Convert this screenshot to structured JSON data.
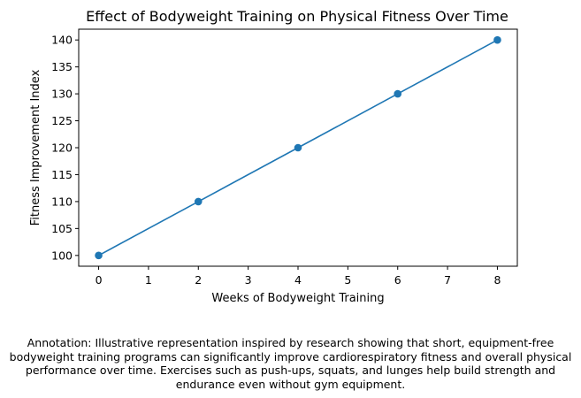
{
  "chart_data": {
    "type": "line",
    "title": "Effect of Bodyweight Training on Physical Fitness Over Time",
    "xlabel": "Weeks of Bodyweight Training",
    "ylabel": "Fitness Improvement Index",
    "x": [
      0,
      2,
      4,
      6,
      8
    ],
    "series": [
      {
        "values": [
          100,
          110,
          120,
          130,
          140
        ],
        "color": "#1f77b4",
        "marker": "circle"
      }
    ],
    "xlim": [
      -0.4,
      8.4
    ],
    "ylim": [
      98,
      142
    ],
    "xticks": [
      0,
      1,
      2,
      3,
      4,
      5,
      6,
      7,
      8
    ],
    "yticks": [
      100,
      105,
      110,
      115,
      120,
      125,
      130,
      135,
      140
    ],
    "grid": false,
    "legend": false
  },
  "annotation": "Annotation: Illustrative representation inspired by research showing that short, equipment-free bodyweight training programs can significantly improve cardiorespiratory fitness and overall physical performance over time. Exercises such as push-ups, squats, and lunges help build strength and endurance even without gym equipment."
}
